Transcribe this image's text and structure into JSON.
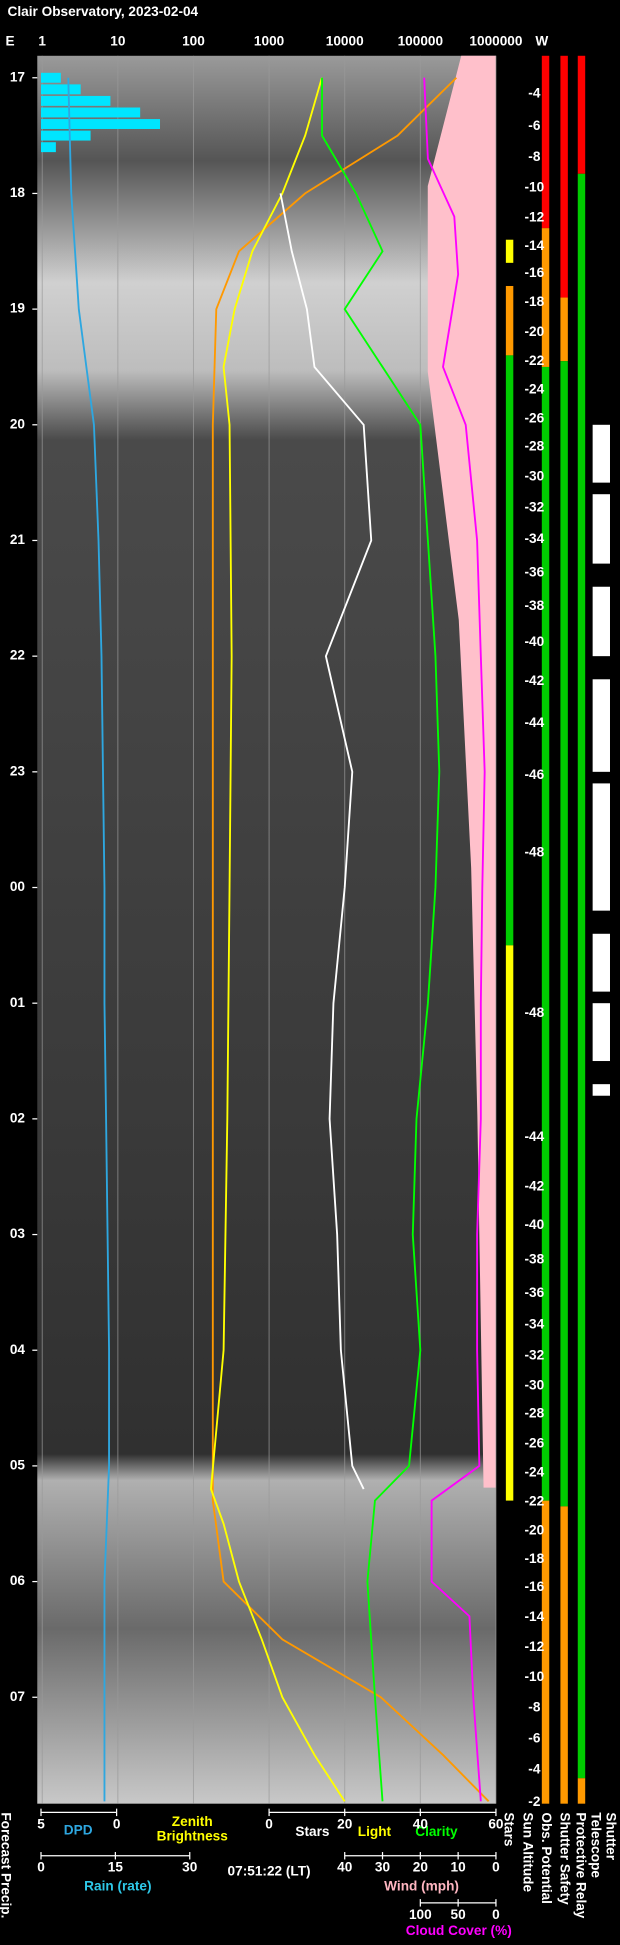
{
  "chart_data": {
    "type": "observatory",
    "title": "Clair Observatory, 2023-02-04",
    "east_label": "E",
    "west_label": "W",
    "timestamp": "07:51:22 (LT)",
    "precip_label": "Forecast Precip.",
    "zenith_label": [
      "Zenith",
      "Brightness"
    ],
    "light_label": "Light",
    "clarity_label": "Clarity",
    "right_labels": [
      "Stars",
      "Sun Altitude",
      "Obs. Potential",
      "Shutter Safety",
      "Protective Relay"
    ],
    "telescope_label": [
      "Telescope",
      "Shutter"
    ],
    "ylim": [
      16.81,
      31.92
    ],
    "yticks": [
      17,
      18,
      19,
      20,
      21,
      22,
      23,
      {
        "value": 24,
        "label": "00"
      },
      {
        "value": 25,
        "label": "01"
      },
      {
        "value": 26,
        "label": "02"
      },
      {
        "value": 27,
        "label": "03"
      },
      {
        "value": 28,
        "label": "04"
      },
      {
        "value": 29,
        "label": "05"
      },
      {
        "value": 30,
        "label": "06"
      },
      {
        "value": 31,
        "label": "07"
      }
    ],
    "top_axis": {
      "log": true,
      "xlim": [
        1,
        1000000
      ],
      "xticks": [
        1,
        10,
        100,
        1000,
        10000,
        100000,
        1000000
      ],
      "grid": true
    },
    "bottom_axes": {
      "dpd": {
        "label": "DPD",
        "color": "#2ea7e0",
        "xlim": [
          5,
          0
        ],
        "xticks": [
          5,
          0
        ]
      },
      "stars": {
        "label": "Stars",
        "color": "#ffffff",
        "xlim": [
          0,
          60
        ],
        "xticks": [
          0,
          20,
          40,
          60
        ]
      },
      "rain": {
        "label": "Rain (rate)",
        "color": "#2ec8e8",
        "xlim": [
          0,
          30
        ],
        "xticks": [
          0,
          15,
          30
        ]
      },
      "wind": {
        "label": "Wind (mph)",
        "color": "#ffb6c1",
        "xlim": [
          40,
          0
        ],
        "xticks": [
          40,
          30,
          20,
          10,
          0
        ]
      },
      "cloud": {
        "label": "Cloud Cover (%)",
        "color": "#ff00ff",
        "xlim": [
          100,
          0
        ],
        "xticks": [
          100,
          50,
          0
        ]
      }
    },
    "series": [
      {
        "axis": "dpd",
        "color": "#2ea7e0",
        "times": [
          17,
          18,
          19,
          20,
          21,
          22,
          23,
          24,
          25,
          26,
          27,
          28,
          29,
          30,
          31,
          31.9
        ],
        "values": [
          3.2,
          3.0,
          2.5,
          1.5,
          1.2,
          1.0,
          0.9,
          0.8,
          0.8,
          0.7,
          0.6,
          0.5,
          0.5,
          0.8,
          0.8,
          0.8
        ]
      },
      {
        "axis": "log",
        "color": "#ff9900",
        "times": [
          17,
          17.5,
          18,
          18.5,
          19,
          20,
          25,
          29.3,
          30,
          30.5,
          31,
          31.5,
          31.9
        ],
        "values": [
          300000,
          50000,
          3000,
          400,
          200,
          180,
          180,
          180,
          250,
          1500,
          30000,
          200000,
          800000
        ]
      },
      {
        "axis": "log",
        "color": "#ffff00",
        "times": [
          17,
          17.5,
          18,
          18.5,
          19,
          19.5,
          20,
          22,
          24,
          26,
          28,
          29.2,
          29.5,
          30,
          30.5,
          31,
          31.5,
          31.9
        ],
        "values": [
          5000,
          3000,
          1500,
          600,
          350,
          250,
          300,
          320,
          300,
          280,
          250,
          170,
          250,
          400,
          800,
          1500,
          4000,
          10000
        ]
      },
      {
        "axis": "stars",
        "color": "#ffffff",
        "times": [
          18,
          18.5,
          19,
          19.5,
          20,
          21,
          22,
          23,
          24,
          25,
          26,
          27,
          28,
          29,
          29.2
        ],
        "values": [
          3,
          6,
          10,
          12,
          25,
          27,
          15,
          22,
          20,
          17,
          16,
          18,
          19,
          22,
          25
        ]
      },
      {
        "axis": "stars",
        "color": "#00ff00",
        "times": [
          17,
          17.5,
          18,
          18.5,
          19,
          19.5,
          20,
          21,
          22,
          23,
          24,
          25,
          26,
          27,
          28,
          29,
          29.3,
          30,
          31,
          31.9
        ],
        "values": [
          14,
          14,
          23,
          30,
          20,
          30,
          40,
          42,
          44,
          45,
          44,
          42,
          39,
          38,
          40,
          37,
          28,
          26,
          28,
          30
        ]
      },
      {
        "axis": "cloud",
        "color": "#ff00ff",
        "times": [
          17,
          17.7,
          18.2,
          18.7,
          19.5,
          20,
          21,
          22,
          23,
          24,
          25,
          26,
          27,
          28,
          29,
          29.3,
          30,
          30.3,
          31,
          31.9
        ],
        "values": [
          95,
          90,
          55,
          50,
          70,
          40,
          25,
          20,
          15,
          18,
          20,
          20,
          25,
          25,
          22,
          85,
          85,
          35,
          30,
          20
        ]
      }
    ],
    "precip": {
      "color": "#00e5ff",
      "times": [
        17.0,
        17.1,
        17.2,
        17.3,
        17.4,
        17.5,
        17.6
      ],
      "values": [
        4,
        8,
        14,
        20,
        24,
        10,
        3
      ]
    },
    "sun_altitude": {
      "times": [
        17.14,
        17.42,
        17.69,
        17.95,
        18.21,
        18.46,
        18.69,
        18.94,
        19.2,
        19.45,
        19.7,
        19.95,
        20.19,
        20.45,
        20.72,
        20.99,
        21.28,
        21.57,
        21.88,
        22.22,
        22.58,
        23.03,
        23.7,
        25.09,
        26.16,
        26.59,
        26.92,
        27.22,
        27.51,
        27.78,
        28.05,
        28.31,
        28.55,
        28.81,
        29.06,
        29.31,
        29.56,
        29.81,
        30.05,
        30.31,
        30.57,
        30.83,
        31.09,
        31.36,
        31.63,
        31.91
      ],
      "values": [
        -4,
        -6,
        -8,
        -10,
        -12,
        -14,
        -16,
        -18,
        -20,
        -22,
        -24,
        -26,
        -28,
        -30,
        -32,
        -34,
        -36,
        -38,
        -40,
        -42,
        -44,
        -46,
        -48,
        -48,
        -44,
        -42,
        -40,
        -38,
        -36,
        -34,
        -32,
        -30,
        -28,
        -26,
        -24,
        -22,
        -20,
        -18,
        -16,
        -14,
        -12,
        -10,
        -8,
        -6,
        -4,
        -2
      ]
    },
    "status": {
      "stars": [
        {
          "from": 18.4,
          "to": 18.6,
          "color": "#ffff00"
        },
        {
          "from": 18.8,
          "to": 19.4,
          "color": "#ff9900"
        },
        {
          "from": 19.4,
          "to": 24.5,
          "color": "#00cc00"
        },
        {
          "from": 24.5,
          "to": 29.3,
          "color": "#ffff00"
        }
      ],
      "obs_potential": [
        {
          "from": 16.81,
          "to": 18.3,
          "color": "#ff0000"
        },
        {
          "from": 18.3,
          "to": 19.5,
          "color": "#ff9900"
        },
        {
          "from": 19.5,
          "to": 29.3,
          "color": "#00cc00"
        },
        {
          "from": 29.3,
          "to": 31.92,
          "color": "#ff9900"
        }
      ],
      "shutter_safety": [
        {
          "from": 16.81,
          "to": 18.9,
          "color": "#ff0000"
        },
        {
          "from": 18.9,
          "to": 19.45,
          "color": "#ff9900"
        },
        {
          "from": 19.45,
          "to": 29.35,
          "color": "#00cc00"
        },
        {
          "from": 29.35,
          "to": 31.92,
          "color": "#ff9900"
        }
      ],
      "protective_relay": [
        {
          "from": 16.81,
          "to": 17.83,
          "color": "#ff0000"
        },
        {
          "from": 17.83,
          "to": 31.7,
          "color": "#00cc00"
        },
        {
          "from": 31.7,
          "to": 31.92,
          "color": "#ff9900"
        }
      ],
      "telescope_shutter": [
        {
          "from": 20.0,
          "to": 20.5,
          "color": "#ffffff"
        },
        {
          "from": 20.6,
          "to": 21.2,
          "color": "#ffffff"
        },
        {
          "from": 21.4,
          "to": 22.0,
          "color": "#ffffff"
        },
        {
          "from": 22.2,
          "to": 23.0,
          "color": "#ffffff"
        },
        {
          "from": 23.1,
          "to": 24.2,
          "color": "#ffffff"
        },
        {
          "from": 24.4,
          "to": 24.9,
          "color": "#ffffff"
        },
        {
          "from": 25.0,
          "to": 25.5,
          "color": "#ffffff"
        },
        {
          "from": 25.7,
          "to": 25.8,
          "color": "#ffffff"
        }
      ]
    }
  }
}
